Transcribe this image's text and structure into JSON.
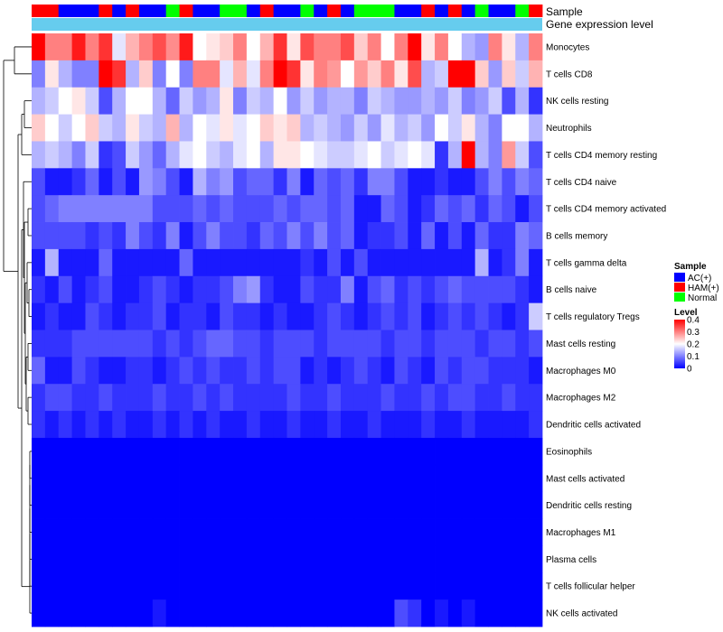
{
  "chart_data": {
    "type": "heatmap",
    "title": "",
    "annotation_labels": [
      "Sample",
      "Gene expression level"
    ],
    "sample_groups": [
      "HAM(+)",
      "HAM(+)",
      "AC(+)",
      "AC(+)",
      "AC(+)",
      "HAM(+)",
      "AC(+)",
      "HAM(+)",
      "AC(+)",
      "AC(+)",
      "Normal",
      "HAM(+)",
      "AC(+)",
      "AC(+)",
      "Normal",
      "Normal",
      "AC(+)",
      "HAM(+)",
      "AC(+)",
      "AC(+)",
      "Normal",
      "AC(+)",
      "HAM(+)",
      "AC(+)",
      "Normal",
      "Normal",
      "Normal",
      "AC(+)",
      "AC(+)",
      "HAM(+)",
      "AC(+)",
      "HAM(+)",
      "AC(+)",
      "Normal",
      "AC(+)",
      "AC(+)",
      "Normal",
      "HAM(+)"
    ],
    "rows": [
      "Monocytes",
      "T cells CD8",
      "NK cells resting",
      "Neutrophils",
      "T cells CD4 memory resting",
      "T cells CD4 naive",
      "T cells CD4 memory activated",
      "B cells memory",
      "T cells gamma delta",
      "B cells naive",
      "T cells regulatory  Tregs",
      "Mast cells resting",
      "Macrophages M0",
      "Macrophages M2",
      "Dendritic cells activated",
      "Eosinophils",
      "Mast cells activated",
      "Dendritic cells resting",
      "Macrophages M1",
      "Plasma cells",
      "T cells follicular helper",
      "NK cells activated"
    ],
    "values": [
      [
        0.4,
        0.3,
        0.3,
        0.38,
        0.3,
        0.36,
        0.18,
        0.26,
        0.3,
        0.34,
        0.29,
        0.38,
        0.2,
        0.22,
        0.24,
        0.3,
        0.2,
        0.26,
        0.36,
        0.22,
        0.34,
        0.3,
        0.3,
        0.34,
        0.24,
        0.3,
        0.2,
        0.3,
        0.4,
        0.22,
        0.3,
        0.2,
        0.14,
        0.12,
        0.3,
        0.22,
        0.14,
        0.3
      ],
      [
        0.1,
        0.22,
        0.14,
        0.1,
        0.1,
        0.4,
        0.36,
        0.14,
        0.24,
        0.1,
        0.2,
        0.1,
        0.3,
        0.3,
        0.18,
        0.26,
        0.18,
        0.3,
        0.4,
        0.36,
        0.22,
        0.3,
        0.28,
        0.2,
        0.28,
        0.24,
        0.3,
        0.22,
        0.34,
        0.14,
        0.16,
        0.4,
        0.4,
        0.24,
        0.12,
        0.24,
        0.16,
        0.26
      ],
      [
        0.14,
        0.16,
        0.2,
        0.22,
        0.16,
        0.06,
        0.14,
        0.2,
        0.2,
        0.14,
        0.08,
        0.16,
        0.12,
        0.14,
        0.22,
        0.1,
        0.16,
        0.14,
        0.2,
        0.12,
        0.16,
        0.12,
        0.14,
        0.14,
        0.1,
        0.16,
        0.14,
        0.12,
        0.12,
        0.14,
        0.12,
        0.16,
        0.1,
        0.12,
        0.16,
        0.06,
        0.14,
        0.04
      ],
      [
        0.24,
        0.2,
        0.16,
        0.2,
        0.24,
        0.16,
        0.14,
        0.22,
        0.16,
        0.14,
        0.26,
        0.14,
        0.2,
        0.18,
        0.22,
        0.18,
        0.2,
        0.24,
        0.22,
        0.24,
        0.14,
        0.16,
        0.14,
        0.12,
        0.16,
        0.12,
        0.18,
        0.14,
        0.16,
        0.12,
        0.2,
        0.16,
        0.22,
        0.14,
        0.1,
        0.2,
        0.2,
        0.14
      ],
      [
        0.14,
        0.16,
        0.14,
        0.1,
        0.16,
        0.04,
        0.06,
        0.16,
        0.12,
        0.08,
        0.14,
        0.18,
        0.2,
        0.16,
        0.14,
        0.18,
        0.2,
        0.14,
        0.22,
        0.22,
        0.2,
        0.18,
        0.16,
        0.16,
        0.18,
        0.2,
        0.16,
        0.18,
        0.2,
        0.18,
        0.04,
        0.14,
        0.4,
        0.14,
        0.1,
        0.28,
        0.16,
        0.06
      ],
      [
        0.06,
        0.02,
        0.02,
        0.04,
        0.08,
        0.02,
        0.06,
        0.02,
        0.12,
        0.1,
        0.06,
        0.02,
        0.14,
        0.1,
        0.12,
        0.06,
        0.08,
        0.08,
        0.04,
        0.1,
        0.02,
        0.08,
        0.06,
        0.08,
        0.04,
        0.1,
        0.1,
        0.06,
        0.02,
        0.02,
        0.04,
        0.02,
        0.02,
        0.06,
        0.1,
        0.06,
        0.1,
        0.08
      ],
      [
        0.06,
        0.08,
        0.1,
        0.1,
        0.1,
        0.1,
        0.1,
        0.1,
        0.1,
        0.06,
        0.06,
        0.06,
        0.08,
        0.06,
        0.08,
        0.06,
        0.06,
        0.06,
        0.08,
        0.06,
        0.08,
        0.08,
        0.06,
        0.08,
        0.02,
        0.02,
        0.08,
        0.06,
        0.02,
        0.04,
        0.08,
        0.06,
        0.08,
        0.04,
        0.08,
        0.06,
        0.02,
        0.06
      ],
      [
        0.06,
        0.06,
        0.06,
        0.06,
        0.04,
        0.06,
        0.04,
        0.1,
        0.06,
        0.04,
        0.1,
        0.02,
        0.06,
        0.1,
        0.06,
        0.06,
        0.04,
        0.08,
        0.06,
        0.1,
        0.06,
        0.1,
        0.06,
        0.08,
        0.02,
        0.04,
        0.04,
        0.06,
        0.02,
        0.08,
        0.02,
        0.06,
        0.02,
        0.08,
        0.04,
        0.04,
        0.1,
        0.08
      ],
      [
        0.02,
        0.14,
        0.02,
        0.02,
        0.02,
        0.08,
        0.02,
        0.02,
        0.02,
        0.02,
        0.02,
        0.08,
        0.02,
        0.02,
        0.02,
        0.02,
        0.02,
        0.02,
        0.02,
        0.02,
        0.04,
        0.02,
        0.06,
        0.02,
        0.06,
        0.02,
        0.02,
        0.02,
        0.02,
        0.02,
        0.02,
        0.02,
        0.02,
        0.14,
        0.02,
        0.04,
        0.1,
        0.02
      ],
      [
        0.04,
        0.02,
        0.06,
        0.02,
        0.04,
        0.06,
        0.02,
        0.02,
        0.04,
        0.06,
        0.04,
        0.02,
        0.04,
        0.04,
        0.06,
        0.1,
        0.12,
        0.04,
        0.02,
        0.02,
        0.06,
        0.04,
        0.04,
        0.1,
        0.02,
        0.06,
        0.08,
        0.04,
        0.06,
        0.04,
        0.06,
        0.08,
        0.06,
        0.06,
        0.06,
        0.06,
        0.04,
        0.02
      ],
      [
        0.02,
        0.04,
        0.02,
        0.02,
        0.06,
        0.04,
        0.02,
        0.04,
        0.04,
        0.06,
        0.02,
        0.04,
        0.04,
        0.02,
        0.06,
        0.04,
        0.04,
        0.02,
        0.04,
        0.02,
        0.02,
        0.04,
        0.06,
        0.04,
        0.02,
        0.04,
        0.06,
        0.04,
        0.06,
        0.02,
        0.04,
        0.06,
        0.04,
        0.06,
        0.04,
        0.02,
        0.04,
        0.16
      ],
      [
        0.04,
        0.04,
        0.04,
        0.06,
        0.06,
        0.06,
        0.06,
        0.06,
        0.06,
        0.04,
        0.06,
        0.04,
        0.06,
        0.08,
        0.08,
        0.06,
        0.06,
        0.04,
        0.06,
        0.06,
        0.06,
        0.04,
        0.06,
        0.06,
        0.06,
        0.06,
        0.04,
        0.06,
        0.06,
        0.04,
        0.06,
        0.06,
        0.06,
        0.04,
        0.06,
        0.06,
        0.04,
        0.06
      ],
      [
        0.08,
        0.02,
        0.02,
        0.06,
        0.04,
        0.02,
        0.02,
        0.04,
        0.04,
        0.02,
        0.04,
        0.06,
        0.04,
        0.06,
        0.04,
        0.04,
        0.06,
        0.04,
        0.06,
        0.06,
        0.02,
        0.04,
        0.02,
        0.04,
        0.06,
        0.04,
        0.02,
        0.06,
        0.04,
        0.02,
        0.06,
        0.04,
        0.06,
        0.06,
        0.04,
        0.04,
        0.04,
        0.02
      ],
      [
        0.04,
        0.06,
        0.06,
        0.04,
        0.04,
        0.06,
        0.04,
        0.04,
        0.04,
        0.06,
        0.04,
        0.04,
        0.06,
        0.04,
        0.06,
        0.04,
        0.04,
        0.04,
        0.04,
        0.06,
        0.04,
        0.04,
        0.06,
        0.04,
        0.04,
        0.04,
        0.06,
        0.04,
        0.04,
        0.06,
        0.04,
        0.06,
        0.06,
        0.04,
        0.04,
        0.06,
        0.04,
        0.04
      ],
      [
        0.04,
        0.02,
        0.04,
        0.02,
        0.04,
        0.02,
        0.04,
        0.02,
        0.02,
        0.04,
        0.02,
        0.04,
        0.02,
        0.04,
        0.02,
        0.02,
        0.04,
        0.02,
        0.02,
        0.04,
        0.02,
        0.02,
        0.04,
        0.02,
        0.02,
        0.04,
        0.02,
        0.02,
        0.02,
        0.04,
        0.02,
        0.02,
        0.04,
        0.02,
        0.02,
        0.02,
        0.02,
        0.04
      ],
      [
        0,
        0,
        0,
        0,
        0,
        0,
        0,
        0,
        0,
        0,
        0,
        0,
        0,
        0,
        0,
        0,
        0,
        0,
        0,
        0,
        0,
        0,
        0,
        0,
        0,
        0,
        0,
        0,
        0,
        0,
        0,
        0,
        0,
        0,
        0,
        0,
        0,
        0
      ],
      [
        0,
        0,
        0,
        0,
        0,
        0,
        0,
        0,
        0,
        0,
        0,
        0,
        0,
        0,
        0,
        0,
        0,
        0,
        0,
        0,
        0,
        0,
        0,
        0,
        0,
        0,
        0,
        0,
        0,
        0,
        0,
        0,
        0,
        0,
        0,
        0,
        0,
        0
      ],
      [
        0,
        0,
        0,
        0,
        0,
        0,
        0,
        0,
        0,
        0,
        0,
        0,
        0,
        0,
        0,
        0,
        0,
        0,
        0,
        0,
        0,
        0,
        0,
        0,
        0,
        0,
        0,
        0,
        0,
        0,
        0,
        0,
        0,
        0,
        0,
        0,
        0,
        0
      ],
      [
        0,
        0,
        0,
        0,
        0,
        0,
        0,
        0,
        0,
        0,
        0,
        0,
        0,
        0,
        0,
        0,
        0,
        0,
        0,
        0,
        0,
        0,
        0,
        0,
        0,
        0,
        0,
        0,
        0,
        0,
        0,
        0,
        0,
        0,
        0,
        0,
        0,
        0
      ],
      [
        0,
        0,
        0,
        0,
        0,
        0,
        0,
        0,
        0,
        0,
        0,
        0,
        0,
        0,
        0,
        0,
        0,
        0,
        0,
        0,
        0,
        0,
        0,
        0,
        0,
        0,
        0,
        0,
        0,
        0,
        0,
        0,
        0,
        0,
        0,
        0,
        0,
        0
      ],
      [
        0,
        0,
        0,
        0,
        0,
        0,
        0,
        0,
        0,
        0,
        0,
        0,
        0,
        0,
        0,
        0,
        0,
        0,
        0,
        0,
        0,
        0,
        0,
        0,
        0,
        0,
        0,
        0,
        0,
        0,
        0,
        0,
        0,
        0,
        0,
        0,
        0,
        0
      ],
      [
        0,
        0,
        0,
        0,
        0,
        0,
        0,
        0,
        0,
        0.02,
        0,
        0,
        0,
        0,
        0,
        0,
        0,
        0,
        0,
        0,
        0,
        0,
        0,
        0,
        0,
        0,
        0,
        0.06,
        0.04,
        0,
        0.02,
        0,
        0.02,
        0,
        0,
        0,
        0,
        0
      ]
    ],
    "legend": {
      "sample": {
        "title": "Sample",
        "entries": [
          {
            "label": "AC(+)",
            "color": "#0000ff"
          },
          {
            "label": "HAM(+)",
            "color": "#ff0000"
          },
          {
            "label": "Normal",
            "color": "#00ff00"
          }
        ]
      },
      "level": {
        "title": "Level",
        "ticks": [
          "0.4",
          "0.3",
          "0.2",
          "0.1",
          "0"
        ],
        "range": [
          0,
          0.4
        ],
        "colors": {
          "low": "#0000ff",
          "mid": "#ffffff",
          "high": "#ff0000"
        }
      }
    },
    "expression_bar_color": "#66ccee",
    "dendrogram": "rows"
  }
}
